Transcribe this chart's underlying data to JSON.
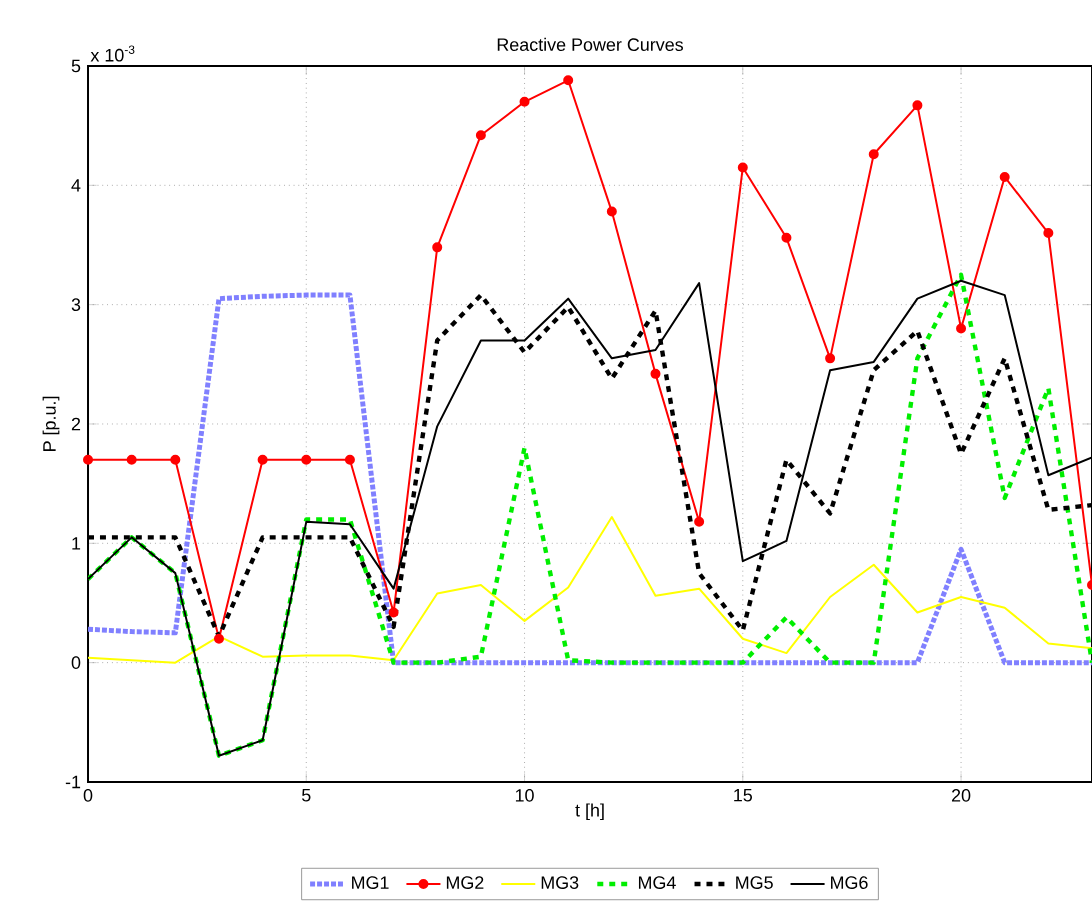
{
  "chart_data": {
    "type": "line",
    "title": "Reactive Power Curves",
    "xlabel": "t [h]",
    "ylabel": "P [p.u.]",
    "annotations": [
      "x 10$^{-3}$"
    ],
    "x": [
      0,
      1,
      2,
      3,
      4,
      5,
      6,
      7,
      8,
      9,
      10,
      11,
      12,
      13,
      14,
      15,
      16,
      17,
      18,
      19,
      20,
      21,
      22,
      23
    ],
    "xlim": [
      0,
      23
    ],
    "xticks": [
      0,
      5,
      10,
      15,
      20
    ],
    "ylim": [
      -1,
      5
    ],
    "yticks": [
      -1,
      0,
      1,
      2,
      3,
      4,
      5
    ],
    "grid": true,
    "legend": "bottom",
    "series": [
      {
        "name": "MG1",
        "color": "#8080ff",
        "line_style": "dotted",
        "marker": "none",
        "values": [
          0.28,
          0.26,
          0.25,
          3.05,
          3.07,
          3.08,
          3.08,
          0.0,
          0,
          0,
          0,
          0,
          0,
          0,
          0,
          0,
          0,
          0,
          0,
          0,
          0.95,
          0,
          0,
          0
        ]
      },
      {
        "name": "MG2",
        "color": "#ff0000",
        "line_style": "solid",
        "marker": "circle",
        "values": [
          1.7,
          1.7,
          1.7,
          0.2,
          1.7,
          1.7,
          1.7,
          0.42,
          3.48,
          4.42,
          4.7,
          4.88,
          3.78,
          2.42,
          1.18,
          4.15,
          3.56,
          2.55,
          4.26,
          4.67,
          2.8,
          4.07,
          3.6,
          0.65
        ]
      },
      {
        "name": "MG3",
        "color": "#ffff00",
        "line_style": "solid",
        "marker": "none",
        "values": [
          0.04,
          0.02,
          0.0,
          0.22,
          0.05,
          0.06,
          0.06,
          0.02,
          0.58,
          0.65,
          0.35,
          0.63,
          1.22,
          0.56,
          0.62,
          0.2,
          0.08,
          0.55,
          0.82,
          0.42,
          0.55,
          0.46,
          0.16,
          0.12
        ]
      },
      {
        "name": "MG4",
        "color": "#00ee00",
        "line_style": "dashed",
        "marker": "none",
        "values": [
          0.7,
          1.05,
          0.75,
          -0.78,
          -0.65,
          1.2,
          1.2,
          0.0,
          0,
          0.05,
          1.8,
          0.02,
          0,
          0,
          0,
          0,
          0.38,
          0,
          0,
          2.55,
          3.25,
          1.38,
          2.3,
          0
        ]
      },
      {
        "name": "MG5",
        "color": "#000000",
        "line_style": "dashed",
        "marker": "none",
        "values": [
          1.05,
          1.05,
          1.05,
          0.22,
          1.05,
          1.05,
          1.05,
          0.3,
          2.7,
          3.08,
          2.6,
          2.98,
          2.38,
          2.95,
          0.75,
          0.27,
          1.7,
          1.25,
          2.45,
          2.78,
          1.75,
          2.55,
          1.28,
          1.32
        ]
      },
      {
        "name": "MG6",
        "color": "#000000",
        "line_style": "solid",
        "marker": "none",
        "values": [
          0.7,
          1.05,
          0.75,
          -0.78,
          -0.65,
          1.18,
          1.16,
          0.62,
          1.98,
          2.7,
          2.7,
          3.05,
          2.55,
          2.62,
          3.18,
          0.85,
          1.02,
          2.45,
          2.52,
          3.05,
          3.2,
          3.08,
          1.57,
          1.72
        ]
      }
    ]
  }
}
